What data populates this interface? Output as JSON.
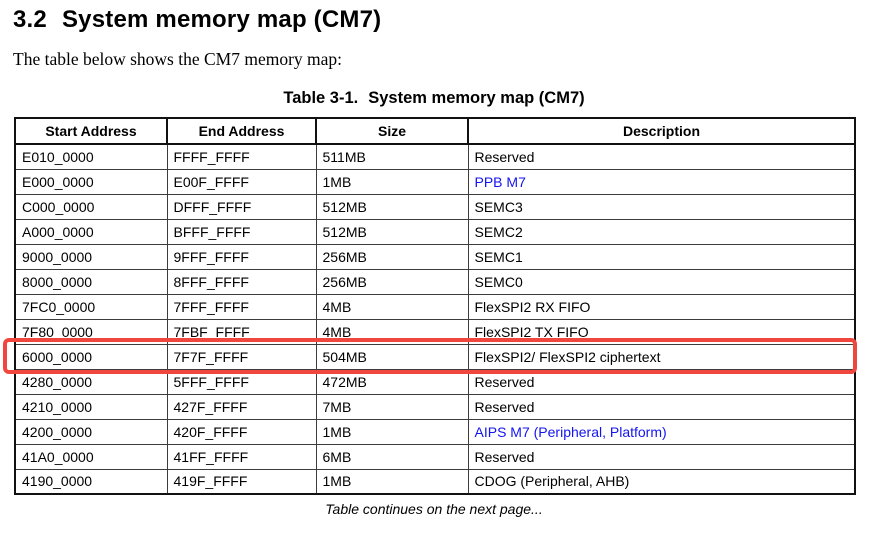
{
  "page": {
    "section_number": "3.2",
    "section_title": "System memory map (CM7)",
    "intro_text": "The table below shows the CM7 memory map:",
    "footer_note": "Table continues on the next page..."
  },
  "table": {
    "caption_label": "Table 3-1.",
    "caption_title": "System memory map (CM7)",
    "columns": [
      "Start Address",
      "End Address",
      "Size",
      "Description"
    ],
    "rows": [
      {
        "start": "E010_0000",
        "end": "FFFF_FFFF",
        "size": "511MB",
        "description": "Reserved",
        "link": false,
        "highlighted": false
      },
      {
        "start": "E000_0000",
        "end": "E00F_FFFF",
        "size": "1MB",
        "description": "PPB M7",
        "link": true,
        "highlighted": false
      },
      {
        "start": "C000_0000",
        "end": "DFFF_FFFF",
        "size": "512MB",
        "description": "SEMC3",
        "link": false,
        "highlighted": false
      },
      {
        "start": "A000_0000",
        "end": "BFFF_FFFF",
        "size": "512MB",
        "description": "SEMC2",
        "link": false,
        "highlighted": false
      },
      {
        "start": "9000_0000",
        "end": "9FFF_FFFF",
        "size": "256MB",
        "description": "SEMC1",
        "link": false,
        "highlighted": false
      },
      {
        "start": "8000_0000",
        "end": "8FFF_FFFF",
        "size": "256MB",
        "description": "SEMC0",
        "link": false,
        "highlighted": false
      },
      {
        "start": "7FC0_0000",
        "end": "7FFF_FFFF",
        "size": "4MB",
        "description": "FlexSPI2 RX FIFO",
        "link": false,
        "highlighted": false
      },
      {
        "start": "7F80_0000",
        "end": "7FBF_FFFF",
        "size": "4MB",
        "description": "FlexSPI2 TX FIFO",
        "link": false,
        "highlighted": false
      },
      {
        "start": "6000_0000",
        "end": "7F7F_FFFF",
        "size": "504MB",
        "description": "FlexSPI2/ FlexSPI2 ciphertext",
        "link": false,
        "highlighted": true
      },
      {
        "start": "4280_0000",
        "end": "5FFF_FFFF",
        "size": "472MB",
        "description": "Reserved",
        "link": false,
        "highlighted": false
      },
      {
        "start": "4210_0000",
        "end": "427F_FFFF",
        "size": "7MB",
        "description": "Reserved",
        "link": false,
        "highlighted": false
      },
      {
        "start": "4200_0000",
        "end": "420F_FFFF",
        "size": "1MB",
        "description": "AIPS M7 (Peripheral, Platform)",
        "link": true,
        "highlighted": false
      },
      {
        "start": "41A0_0000",
        "end": "41FF_FFFF",
        "size": "6MB",
        "description": "Reserved",
        "link": false,
        "highlighted": false
      },
      {
        "start": "4190_0000",
        "end": "419F_FFFF",
        "size": "1MB",
        "description": "CDOG (Peripheral, AHB)",
        "link": false,
        "highlighted": false
      }
    ]
  },
  "colors": {
    "link_blue": "#1414f0",
    "highlight_red": "#f1463e"
  }
}
